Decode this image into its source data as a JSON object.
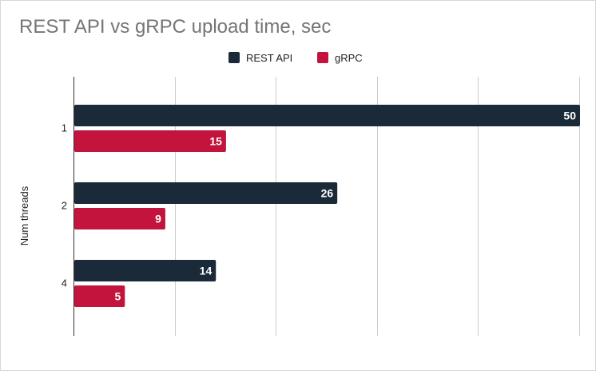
{
  "chart_data": {
    "type": "bar",
    "orientation": "horizontal",
    "title": "REST API vs gRPC upload time, sec",
    "ylabel": "Num threads",
    "categories": [
      "1",
      "2",
      "4"
    ],
    "series": [
      {
        "name": "REST API",
        "values": [
          50,
          26,
          14
        ],
        "color": "#1b2a38"
      },
      {
        "name": "gRPC",
        "values": [
          15,
          9,
          5
        ],
        "color": "#c2143c"
      }
    ],
    "xlim": [
      0,
      50
    ],
    "grid": true,
    "legend": "top",
    "data_labels": true
  }
}
